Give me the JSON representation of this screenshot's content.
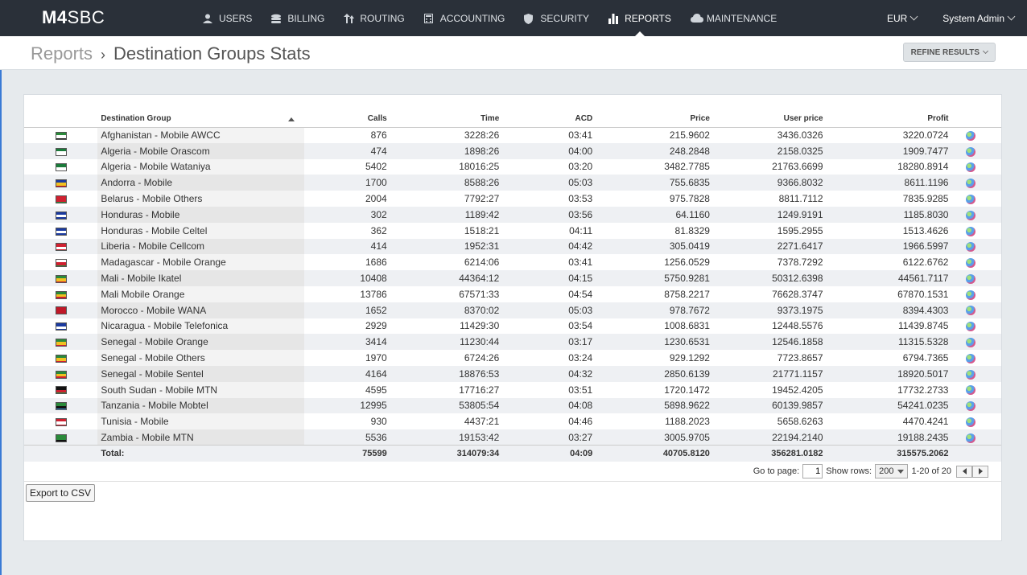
{
  "app": {
    "logo_bold": "M4",
    "logo_light": "SBC"
  },
  "nav": [
    {
      "label": "USERS",
      "icon": "user-icon"
    },
    {
      "label": "BILLING",
      "icon": "coins-icon"
    },
    {
      "label": "ROUTING",
      "icon": "routing-icon"
    },
    {
      "label": "ACCOUNTING",
      "icon": "calculator-icon"
    },
    {
      "label": "SECURITY",
      "icon": "shield-icon"
    },
    {
      "label": "REPORTS",
      "icon": "bar-chart-icon",
      "active": true
    },
    {
      "label": "MAINTENANCE",
      "icon": "cloud-icon"
    }
  ],
  "topright": {
    "currency": "EUR",
    "user": "System Admin"
  },
  "breadcrumb": {
    "root": "Reports",
    "separator": "›",
    "current": "Destination Groups Stats"
  },
  "refine_label": "REFINE RESULTS",
  "table": {
    "columns": [
      "Destination Group",
      "Calls",
      "Time",
      "ACD",
      "Price",
      "User price",
      "Profit"
    ],
    "rows": [
      {
        "flag": [
          "#2a8a3a",
          "#ffffff",
          "#111111"
        ],
        "name": "Afghanistan - Mobile AWCC",
        "calls": "876",
        "time": "3228:26",
        "acd": "03:41",
        "price": "215.9602",
        "user_price": "3436.0326",
        "profit": "3220.0724"
      },
      {
        "flag": [
          "#1a7a3a",
          "#ffffff",
          "#ffffff"
        ],
        "name": "Algeria - Mobile Orascom",
        "calls": "474",
        "time": "1898:26",
        "acd": "04:00",
        "price": "248.2848",
        "user_price": "2158.0325",
        "profit": "1909.7477"
      },
      {
        "flag": [
          "#1a7a3a",
          "#ffffff",
          "#ffffff"
        ],
        "name": "Algeria - Mobile Wataniya",
        "calls": "5402",
        "time": "18016:25",
        "acd": "03:20",
        "price": "3482.7785",
        "user_price": "21763.6699",
        "profit": "18280.8914"
      },
      {
        "flag": [
          "#1a3aa0",
          "#f0c020",
          "#d01020"
        ],
        "name": "Andorra - Mobile",
        "calls": "1700",
        "time": "8588:26",
        "acd": "05:03",
        "price": "755.6835",
        "user_price": "9366.8032",
        "profit": "8611.1196"
      },
      {
        "flag": [
          "#d02030",
          "#d02030",
          "#2a8a3a"
        ],
        "name": "Belarus - Mobile Others",
        "calls": "2004",
        "time": "7792:27",
        "acd": "03:53",
        "price": "975.7828",
        "user_price": "8811.7112",
        "profit": "7835.9285"
      },
      {
        "flag": [
          "#1a3aa0",
          "#ffffff",
          "#1a3aa0"
        ],
        "name": "Honduras - Mobile",
        "calls": "302",
        "time": "1189:42",
        "acd": "03:56",
        "price": "64.1160",
        "user_price": "1249.9191",
        "profit": "1185.8030"
      },
      {
        "flag": [
          "#1a3aa0",
          "#ffffff",
          "#1a3aa0"
        ],
        "name": "Honduras - Mobile Celtel",
        "calls": "362",
        "time": "1518:21",
        "acd": "04:11",
        "price": "81.8329",
        "user_price": "1595.2955",
        "profit": "1513.4626"
      },
      {
        "flag": [
          "#d02030",
          "#ffffff",
          "#d02030"
        ],
        "name": "Liberia - Mobile Cellcom",
        "calls": "414",
        "time": "1952:31",
        "acd": "04:42",
        "price": "305.0419",
        "user_price": "2271.6417",
        "profit": "1966.5997"
      },
      {
        "flag": [
          "#ffffff",
          "#d02030",
          "#2a8a3a"
        ],
        "name": "Madagascar - Mobile Orange",
        "calls": "1686",
        "time": "6214:06",
        "acd": "03:41",
        "price": "1256.0529",
        "user_price": "7378.7292",
        "profit": "6122.6762"
      },
      {
        "flag": [
          "#2a8a3a",
          "#f0c020",
          "#d02030"
        ],
        "name": "Mali - Mobile Ikatel",
        "calls": "10408",
        "time": "44364:12",
        "acd": "04:15",
        "price": "5750.9281",
        "user_price": "50312.6398",
        "profit": "44561.7117"
      },
      {
        "flag": [
          "#2a8a3a",
          "#f0c020",
          "#d02030"
        ],
        "name": "Mali Mobile Orange",
        "calls": "13786",
        "time": "67571:33",
        "acd": "04:54",
        "price": "8758.2217",
        "user_price": "76628.3747",
        "profit": "67870.1531"
      },
      {
        "flag": [
          "#c01828",
          "#c01828",
          "#c01828"
        ],
        "name": "Morocco - Mobile WANA",
        "calls": "1652",
        "time": "8370:02",
        "acd": "05:03",
        "price": "978.7672",
        "user_price": "9373.1975",
        "profit": "8394.4303"
      },
      {
        "flag": [
          "#1a3aa0",
          "#ffffff",
          "#1a3aa0"
        ],
        "name": "Nicaragua - Mobile Telefonica",
        "calls": "2929",
        "time": "11429:30",
        "acd": "03:54",
        "price": "1008.6831",
        "user_price": "12448.5576",
        "profit": "11439.8745"
      },
      {
        "flag": [
          "#2a8a3a",
          "#f0c020",
          "#d02030"
        ],
        "name": "Senegal - Mobile Orange",
        "calls": "3414",
        "time": "11230:44",
        "acd": "03:17",
        "price": "1230.6531",
        "user_price": "12546.1858",
        "profit": "11315.5328"
      },
      {
        "flag": [
          "#2a8a3a",
          "#f0c020",
          "#d02030"
        ],
        "name": "Senegal - Mobile Others",
        "calls": "1970",
        "time": "6724:26",
        "acd": "03:24",
        "price": "929.1292",
        "user_price": "7723.8657",
        "profit": "6794.7365"
      },
      {
        "flag": [
          "#2a8a3a",
          "#f0c020",
          "#d02030"
        ],
        "name": "Senegal - Mobile Sentel",
        "calls": "4164",
        "time": "18876:53",
        "acd": "04:32",
        "price": "2850.6139",
        "user_price": "21771.1157",
        "profit": "18920.5017"
      },
      {
        "flag": [
          "#111111",
          "#d02030",
          "#2a8a3a"
        ],
        "name": "South Sudan - Mobile MTN",
        "calls": "4595",
        "time": "17716:27",
        "acd": "03:51",
        "price": "1720.1472",
        "user_price": "19452.4205",
        "profit": "17732.2733"
      },
      {
        "flag": [
          "#2a8a3a",
          "#111111",
          "#3a90d0"
        ],
        "name": "Tanzania - Mobile Mobtel",
        "calls": "12995",
        "time": "53805:54",
        "acd": "04:08",
        "price": "5898.9622",
        "user_price": "60139.9857",
        "profit": "54241.0235"
      },
      {
        "flag": [
          "#d02030",
          "#ffffff",
          "#d02030"
        ],
        "name": "Tunisia - Mobile",
        "calls": "930",
        "time": "4437:21",
        "acd": "04:46",
        "price": "1188.2023",
        "user_price": "5658.6263",
        "profit": "4470.4241"
      },
      {
        "flag": [
          "#2a8a3a",
          "#2a8a3a",
          "#111111"
        ],
        "name": "Zambia - Mobile MTN",
        "calls": "5536",
        "time": "19153:42",
        "acd": "03:27",
        "price": "3005.9705",
        "user_price": "22194.2140",
        "profit": "19188.2435"
      }
    ],
    "total": {
      "label": "Total:",
      "calls": "75599",
      "time": "314079:34",
      "acd": "04:09",
      "price": "40705.8120",
      "user_price": "356281.0182",
      "profit": "315575.2062"
    }
  },
  "pager": {
    "goto_label": "Go to page:",
    "page": "1",
    "rows_label": "Show rows:",
    "rows_value": "200",
    "range": "1-20 of 20"
  },
  "export_label": "Export to CSV"
}
